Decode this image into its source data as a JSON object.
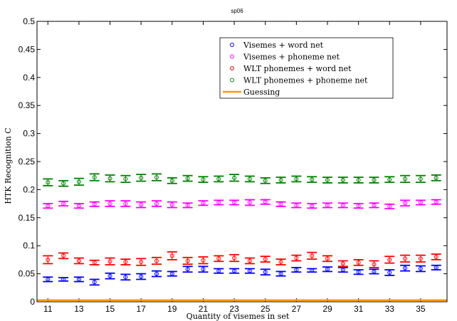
{
  "chart_data": {
    "type": "scatter",
    "title": "sp06",
    "xlabel": "Quantity of visemes in set",
    "ylabel": "HTK Recognition C",
    "xlim": [
      10.3,
      36.7
    ],
    "ylim": [
      0,
      0.5
    ],
    "x_ticks": [
      11,
      13,
      15,
      17,
      19,
      21,
      23,
      25,
      27,
      29,
      31,
      33,
      35
    ],
    "y_ticks": [
      0,
      0.05,
      0.1,
      0.15,
      0.2,
      0.25,
      0.3,
      0.35,
      0.4,
      0.45,
      0.5
    ],
    "y_tick_labels": [
      "0",
      "0.05",
      "0.1",
      "0.15",
      "0.2",
      "0.25",
      "0.3",
      "0.35",
      "0.4",
      "0.45",
      "0.5"
    ],
    "legend_placement": "top-right",
    "x": [
      11,
      12,
      13,
      14,
      15,
      16,
      17,
      18,
      19,
      20,
      21,
      22,
      23,
      24,
      25,
      26,
      27,
      28,
      29,
      30,
      31,
      32,
      33,
      34,
      35,
      36
    ],
    "series": [
      {
        "name": "Visemes + word net",
        "color": "#0000ff",
        "values": [
          0.04,
          0.04,
          0.04,
          0.035,
          0.046,
          0.044,
          0.045,
          0.05,
          0.05,
          0.058,
          0.058,
          0.055,
          0.055,
          0.055,
          0.053,
          0.05,
          0.057,
          0.056,
          0.058,
          0.057,
          0.053,
          0.054,
          0.052,
          0.06,
          0.059,
          0.061
        ],
        "err": [
          0.004,
          0.003,
          0.004,
          0.005,
          0.005,
          0.005,
          0.005,
          0.005,
          0.004,
          0.005,
          0.005,
          0.004,
          0.004,
          0.004,
          0.005,
          0.004,
          0.004,
          0.003,
          0.004,
          0.004,
          0.004,
          0.004,
          0.005,
          0.005,
          0.005,
          0.004
        ]
      },
      {
        "name": "Visemes + phoneme net",
        "color": "#ff00ff",
        "values": [
          0.171,
          0.175,
          0.171,
          0.174,
          0.175,
          0.175,
          0.173,
          0.175,
          0.173,
          0.172,
          0.176,
          0.177,
          0.177,
          0.177,
          0.178,
          0.174,
          0.172,
          0.171,
          0.172,
          0.172,
          0.171,
          0.172,
          0.17,
          0.176,
          0.177,
          0.178
        ],
        "err": [
          0.004,
          0.004,
          0.004,
          0.004,
          0.005,
          0.005,
          0.005,
          0.005,
          0.005,
          0.004,
          0.004,
          0.004,
          0.004,
          0.005,
          0.004,
          0.004,
          0.004,
          0.004,
          0.004,
          0.004,
          0.004,
          0.004,
          0.004,
          0.005,
          0.004,
          0.004
        ]
      },
      {
        "name": "WLT phonemes + word net",
        "color": "#ff0000",
        "values": [
          0.075,
          0.082,
          0.073,
          0.07,
          0.072,
          0.071,
          0.071,
          0.073,
          0.082,
          0.073,
          0.074,
          0.077,
          0.078,
          0.073,
          0.076,
          0.071,
          0.078,
          0.082,
          0.077,
          0.068,
          0.07,
          0.067,
          0.075,
          0.077,
          0.077,
          0.08
        ],
        "err": [
          0.007,
          0.005,
          0.005,
          0.004,
          0.006,
          0.005,
          0.006,
          0.006,
          0.007,
          0.006,
          0.006,
          0.005,
          0.006,
          0.005,
          0.005,
          0.005,
          0.005,
          0.006,
          0.005,
          0.005,
          0.005,
          0.006,
          0.006,
          0.006,
          0.006,
          0.005
        ]
      },
      {
        "name": "WLT phonemes + phoneme net",
        "color": "#008000",
        "values": [
          0.213,
          0.211,
          0.214,
          0.222,
          0.22,
          0.219,
          0.221,
          0.222,
          0.216,
          0.22,
          0.218,
          0.219,
          0.221,
          0.219,
          0.216,
          0.217,
          0.219,
          0.218,
          0.217,
          0.217,
          0.217,
          0.217,
          0.218,
          0.219,
          0.219,
          0.221
        ],
        "err": [
          0.006,
          0.005,
          0.006,
          0.006,
          0.006,
          0.006,
          0.006,
          0.006,
          0.005,
          0.005,
          0.005,
          0.005,
          0.006,
          0.005,
          0.005,
          0.005,
          0.005,
          0.005,
          0.005,
          0.005,
          0.005,
          0.005,
          0.005,
          0.006,
          0.006,
          0.005
        ]
      },
      {
        "name": "Guessing",
        "color": "#ff9900",
        "values": [
          0.0029,
          0.0029,
          0.0029,
          0.0029,
          0.0029,
          0.0029,
          0.0029,
          0.0029,
          0.0029,
          0.0029,
          0.0029,
          0.0029,
          0.0029,
          0.0029,
          0.0029,
          0.0029,
          0.0029,
          0.0029,
          0.0029,
          0.0029,
          0.0029,
          0.0029,
          0.0029,
          0.0029,
          0.0029,
          0.0029
        ]
      }
    ]
  }
}
